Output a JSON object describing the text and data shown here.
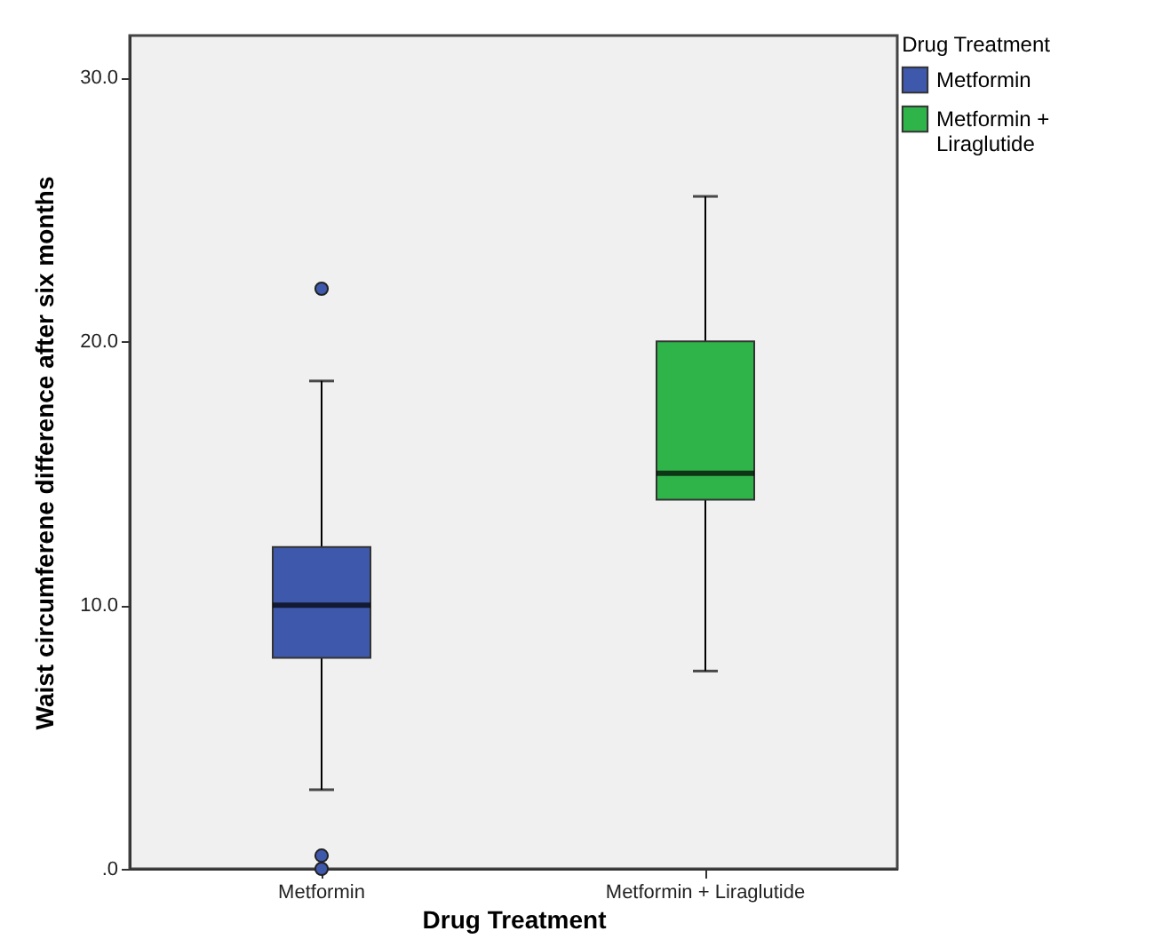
{
  "chart_data": {
    "type": "box",
    "xlabel": "Drug Treatment",
    "ylabel": "Waist circumferene difference after six months",
    "legend_title": "Drug Treatment",
    "legend": "top right",
    "grid": false,
    "categories": [
      "Metformin",
      "Metformin + Liraglutide"
    ],
    "series": [
      {
        "name": "Metformin",
        "color": "#3e58ac",
        "boxes": [
          {
            "low": 3.0,
            "q1": 8.0,
            "median": 10.0,
            "q3": 12.2,
            "high": 18.5,
            "outliers": [
              22.0,
              0.5,
              0
            ]
          },
          null
        ]
      },
      {
        "name": "Metformin + Liraglutide",
        "color": "#2fb44a",
        "boxes": [
          null,
          {
            "low": 7.5,
            "q1": 14.0,
            "median": 15.0,
            "q3": 20.0,
            "high": 25.5
          }
        ]
      }
    ],
    "ylim": [
      0,
      31.6
    ],
    "yticks": [
      {
        "value": 0,
        "label": ".0"
      },
      {
        "value": 10,
        "label": "10.0"
      },
      {
        "value": 20,
        "label": "20.0"
      },
      {
        "value": 30,
        "label": "30.0"
      }
    ]
  }
}
